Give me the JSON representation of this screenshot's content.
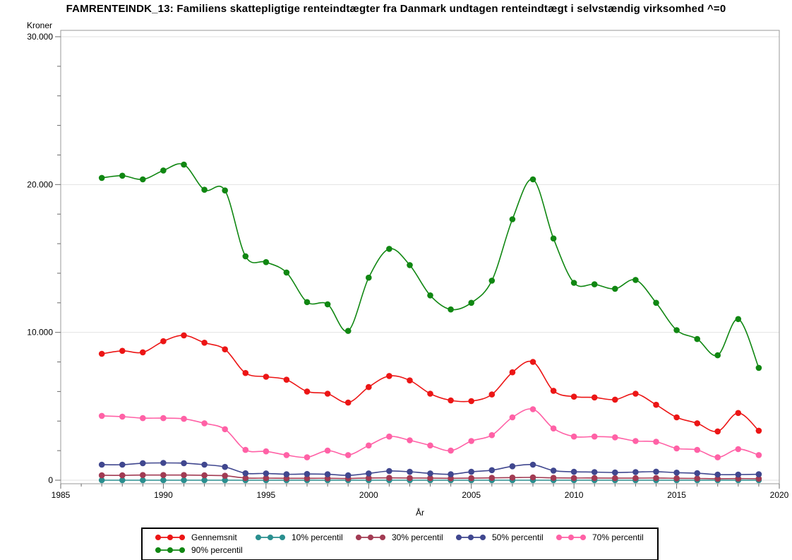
{
  "chart_data": {
    "type": "line",
    "title": "FAMRENTEINDK_13: Familiens skattepligtige renteindtægter fra Danmark undtagen renteindtægt i selvstændig virksomhed ^=0",
    "xlabel": "År",
    "ylabel": "Kroner",
    "interpolation": "smooth",
    "grid": "horizontal-major",
    "legend_position": "bottom-center",
    "xlim": [
      1985,
      2020
    ],
    "ylim": [
      0,
      30000
    ],
    "x_major_ticks": [
      1985,
      1990,
      1995,
      2000,
      2005,
      2010,
      2015,
      2020
    ],
    "x_minor_step": 1,
    "y_major_ticks": [
      {
        "value": 0,
        "label": "0"
      },
      {
        "value": 10000,
        "label": "10.000"
      },
      {
        "value": 20000,
        "label": "20.000"
      },
      {
        "value": 30000,
        "label": "30.000"
      }
    ],
    "y_minor_step": 2000,
    "x": [
      1987,
      1988,
      1989,
      1990,
      1991,
      1992,
      1993,
      1994,
      1995,
      1996,
      1997,
      1998,
      1999,
      2000,
      2001,
      2002,
      2003,
      2004,
      2005,
      2006,
      2007,
      2008,
      2009,
      2010,
      2011,
      2012,
      2013,
      2014,
      2015,
      2016,
      2017,
      2018,
      2019
    ],
    "series": [
      {
        "name": "Gennemsnit",
        "color": "#ec1515",
        "values": [
          8550,
          8750,
          8650,
          9400,
          9800,
          9300,
          8850,
          7250,
          7000,
          6800,
          6000,
          5850,
          5250,
          6300,
          7050,
          6750,
          5850,
          5400,
          5350,
          5800,
          7300,
          8000,
          6050,
          5650,
          5600,
          5450,
          5850,
          5100,
          4250,
          3850,
          3300,
          4550,
          3350
        ]
      },
      {
        "name": "10% percentil",
        "color": "#2a8f8f",
        "values": [
          0,
          0,
          0,
          0,
          0,
          0,
          0,
          0,
          0,
          0,
          0,
          0,
          0,
          0,
          0,
          0,
          0,
          0,
          0,
          0,
          0,
          0,
          0,
          0,
          0,
          0,
          0,
          0,
          0,
          0,
          0,
          0,
          0
        ]
      },
      {
        "name": "30% percentil",
        "color": "#a23b53",
        "values": [
          330,
          330,
          350,
          350,
          350,
          330,
          300,
          150,
          140,
          130,
          130,
          130,
          120,
          150,
          160,
          150,
          140,
          130,
          140,
          160,
          175,
          190,
          160,
          150,
          150,
          140,
          140,
          150,
          130,
          120,
          100,
          110,
          100
        ]
      },
      {
        "name": "50% percentil",
        "color": "#40478f",
        "values": [
          1050,
          1050,
          1150,
          1170,
          1150,
          1050,
          900,
          470,
          460,
          400,
          420,
          400,
          330,
          460,
          620,
          570,
          460,
          400,
          570,
          680,
          940,
          1050,
          650,
          570,
          550,
          520,
          550,
          580,
          510,
          475,
          380,
          380,
          400
        ]
      },
      {
        "name": "70% percentil",
        "color": "#ff61a6",
        "values": [
          4350,
          4300,
          4200,
          4200,
          4150,
          3850,
          3450,
          2050,
          1950,
          1700,
          1550,
          2000,
          1700,
          2350,
          2950,
          2700,
          2350,
          2000,
          2650,
          3050,
          4250,
          4800,
          3500,
          2950,
          2950,
          2900,
          2650,
          2600,
          2150,
          2050,
          1550,
          2100,
          1700
        ]
      },
      {
        "name": "90% percentil",
        "color": "#108712",
        "values": [
          20450,
          20600,
          20350,
          20950,
          21350,
          19650,
          19600,
          15150,
          14750,
          14050,
          12050,
          11900,
          10100,
          13700,
          15650,
          14550,
          12500,
          11550,
          12000,
          13500,
          17650,
          20350,
          16350,
          13350,
          13250,
          12950,
          13550,
          12000,
          10150,
          9550,
          8450,
          10900,
          7600
        ]
      }
    ],
    "legend_rows": [
      [
        "Gennemsnit",
        "10% percentil",
        "30% percentil",
        "50% percentil",
        "70% percentil"
      ],
      [
        "90% percentil"
      ]
    ],
    "colors": {
      "grid": "#e2e2e2",
      "frame": "#9a9a9a",
      "tick": "#6b6b6b",
      "text": "#000000",
      "background": "#ffffff"
    }
  }
}
